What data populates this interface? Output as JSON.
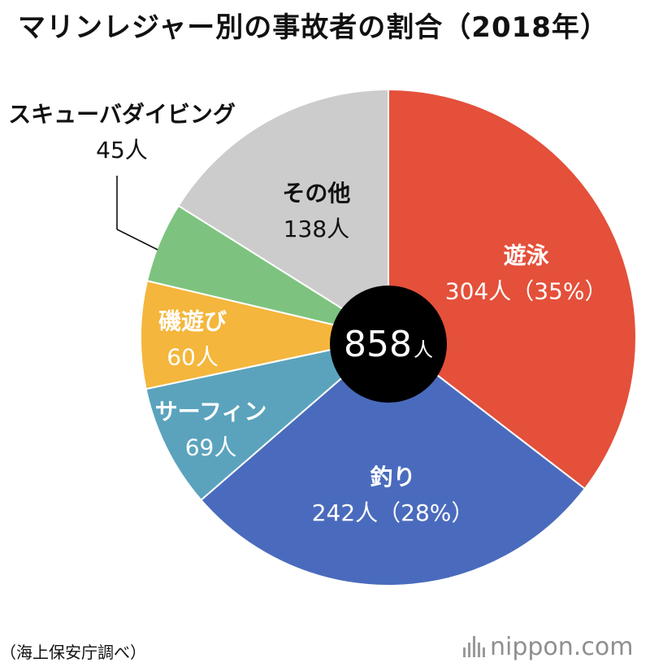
{
  "chart_data": {
    "type": "pie",
    "title": "マリンレジャー別の事故者の割合（2018年）",
    "total_label": "858",
    "total_unit": "人",
    "slices": [
      {
        "name": "遊泳",
        "value": 304,
        "value_label": "304人（35%）",
        "color": "#e4503a"
      },
      {
        "name": "釣り",
        "value": 242,
        "value_label": "242人（28%）",
        "color": "#4a6bbd"
      },
      {
        "name": "サーフィン",
        "value": 69,
        "value_label": "69人",
        "color": "#5ba3bd"
      },
      {
        "name": "磯遊び",
        "value": 60,
        "value_label": "60人",
        "color": "#f4b63c"
      },
      {
        "name": "スキューバダイビング",
        "value": 45,
        "value_label": "45人",
        "color": "#7dc37f"
      },
      {
        "name": "その他",
        "value": 138,
        "value_label": "138人",
        "color": "#cccccc"
      }
    ]
  },
  "source": "（海上保安庁調べ）",
  "brand": "nippon.com",
  "icons": {
    "brand_logo": "nippon-bars-icon"
  }
}
